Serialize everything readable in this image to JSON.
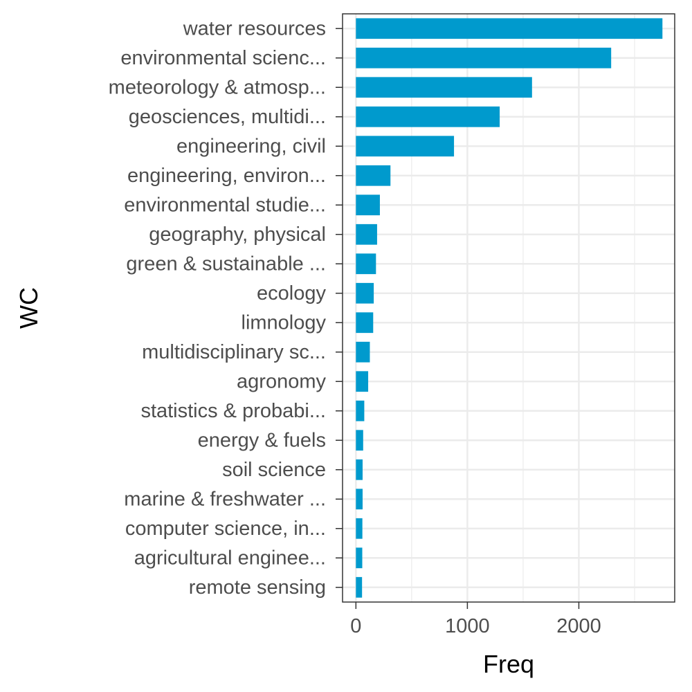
{
  "chart_data": {
    "type": "bar",
    "orientation": "horizontal",
    "xlabel": "Freq",
    "ylabel": "WC",
    "categories": [
      "water resources",
      "environmental scienc...",
      "meteorology & atmosp...",
      "geosciences, multidi...",
      "engineering, civil",
      "engineering, environ...",
      "environmental studie...",
      "geography, physical",
      "green & sustainable ...",
      "ecology",
      "limnology",
      "multidisciplinary sc...",
      "agronomy",
      "statistics & probabi...",
      "energy & fuels",
      "soil science",
      "marine & freshwater ...",
      "computer science, in...",
      "agricultural enginee...",
      "remote sensing"
    ],
    "values": [
      2750,
      2290,
      1580,
      1290,
      880,
      310,
      215,
      190,
      180,
      160,
      155,
      125,
      110,
      75,
      65,
      60,
      60,
      58,
      57,
      55
    ],
    "xlim": [
      -120,
      2860
    ],
    "xticks": [
      0,
      1000,
      2000
    ],
    "xtick_labels": [
      "0",
      "1000",
      "2000"
    ],
    "bar_color": "#009acd",
    "grid": true,
    "theme": "bw"
  }
}
